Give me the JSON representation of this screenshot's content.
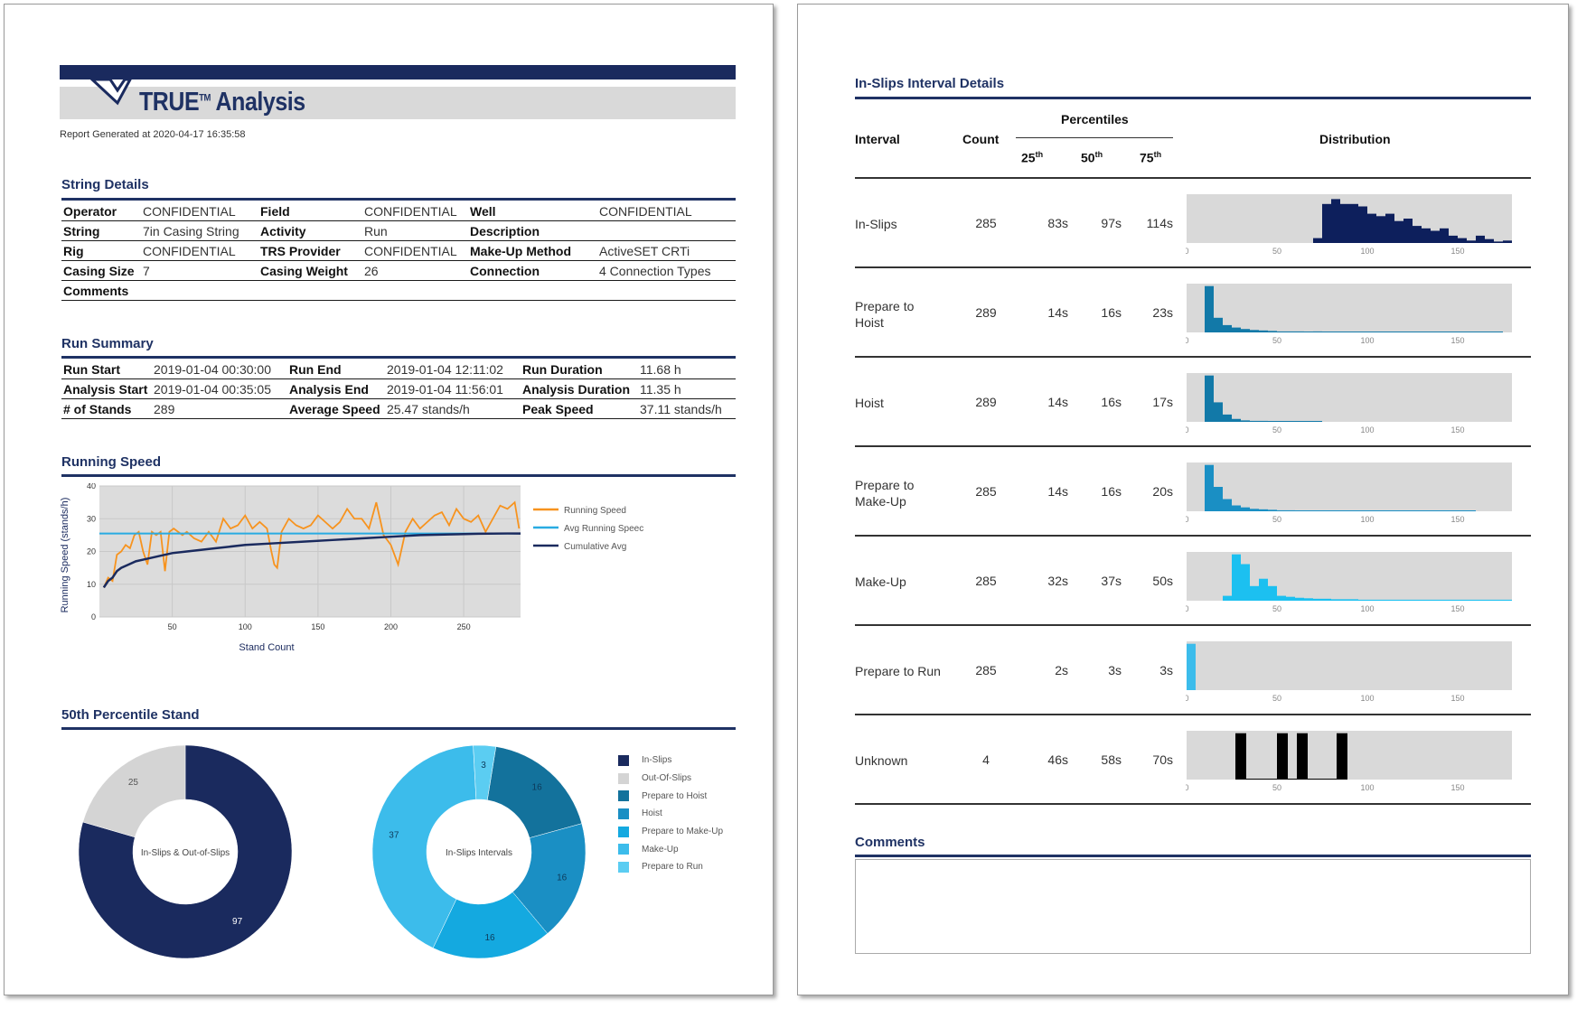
{
  "header": {
    "title": "TRUE",
    "title_mark": "TM",
    "title_suffix": "Analysis",
    "report_generated": "Report Generated at 2020-04-17 16:35:58"
  },
  "string_details": {
    "title": "String Details",
    "rows": [
      [
        {
          "k": "Operator",
          "v": "CONFIDENTIAL"
        },
        {
          "k": "Field",
          "v": "CONFIDENTIAL"
        },
        {
          "k": "Well",
          "v": "CONFIDENTIAL"
        }
      ],
      [
        {
          "k": "String",
          "v": "7in Casing String"
        },
        {
          "k": "Activity",
          "v": "Run"
        },
        {
          "k": "Description",
          "v": ""
        }
      ],
      [
        {
          "k": "Rig",
          "v": "CONFIDENTIAL"
        },
        {
          "k": "TRS Provider",
          "v": "CONFIDENTIAL"
        },
        {
          "k": "Make-Up Method",
          "v": "ActiveSET CRTi"
        }
      ],
      [
        {
          "k": "Casing Size",
          "v": "7"
        },
        {
          "k": "Casing Weight",
          "v": "26"
        },
        {
          "k": "Connection",
          "v": "4 Connection Types"
        }
      ],
      [
        {
          "k": "Comments",
          "v": ""
        }
      ]
    ]
  },
  "run_summary": {
    "title": "Run Summary",
    "rows": [
      [
        {
          "k": "Run Start",
          "v": "2019-01-04 00:30:00"
        },
        {
          "k": "Run End",
          "v": "2019-01-04 12:11:02"
        },
        {
          "k": "Run Duration",
          "v": "11.68 h"
        }
      ],
      [
        {
          "k": "Analysis Start",
          "v": "2019-01-04 00:35:05"
        },
        {
          "k": "Analysis End",
          "v": "2019-01-04 11:56:01"
        },
        {
          "k": "Analysis Duration",
          "v": "11.35 h"
        }
      ],
      [
        {
          "k": "# of Stands",
          "v": "289"
        },
        {
          "k": "Average Speed",
          "v": "25.47 stands/h"
        },
        {
          "k": "Peak Speed",
          "v": "37.11 stands/h"
        }
      ]
    ]
  },
  "running_speed_section": {
    "title": "Running Speed"
  },
  "percentile_section": {
    "title": "50th Percentile Stand"
  },
  "colors": {
    "navy": "#1a2a5e",
    "orange": "#f7931e",
    "cyan": "#29abe2",
    "grey": "#d9d9d9",
    "hist_navy": "#0d1f5c",
    "hist_teal": "#1279a8",
    "hist_sky": "#1cc0f0"
  },
  "chart_data": [
    {
      "type": "line",
      "title": "",
      "xlabel": "Stand Count",
      "ylabel": "Running Speed (stands/h)",
      "xlim": [
        0,
        289
      ],
      "ylim": [
        0,
        40
      ],
      "xticks": [
        "50",
        "100",
        "150",
        "200",
        "250"
      ],
      "yticks": [
        "0",
        "10",
        "20",
        "30",
        "40"
      ],
      "grid": true,
      "legend": "right",
      "series": [
        {
          "name": "Running Speed",
          "color": "#f7931e",
          "x": [
            3,
            6,
            9,
            12,
            15,
            18,
            21,
            24,
            27,
            30,
            33,
            36,
            39,
            42,
            45,
            48,
            51,
            54,
            57,
            60,
            65,
            70,
            75,
            80,
            85,
            90,
            95,
            100,
            105,
            110,
            115,
            118,
            120,
            122,
            125,
            130,
            135,
            140,
            145,
            150,
            155,
            160,
            165,
            170,
            175,
            180,
            185,
            190,
            195,
            200,
            205,
            210,
            215,
            220,
            225,
            230,
            235,
            240,
            245,
            250,
            255,
            260,
            265,
            270,
            275,
            280,
            285,
            288
          ],
          "y": [
            9,
            12,
            11,
            19,
            20,
            22,
            21,
            25,
            26,
            20,
            16,
            26,
            25,
            26,
            14,
            26,
            27,
            26,
            25,
            26,
            24,
            23,
            26,
            23,
            30,
            27,
            28,
            31,
            27,
            29,
            27,
            20,
            16,
            15,
            26,
            30,
            28,
            27,
            28,
            31,
            29,
            27,
            29,
            33,
            30,
            30,
            27,
            35,
            25,
            22,
            16,
            26,
            30,
            27,
            29,
            31,
            32,
            28,
            33,
            30,
            29,
            31,
            26,
            30,
            34,
            33,
            35,
            27
          ]
        },
        {
          "name": "Avg Running Speec",
          "color": "#29abe2",
          "x": [
            0,
            289
          ],
          "y": [
            25.5,
            25.5
          ]
        },
        {
          "name": "Cumulative Avg",
          "color": "#1a2a5e",
          "x": [
            3,
            6,
            9,
            12,
            15,
            20,
            25,
            30,
            40,
            50,
            60,
            80,
            100,
            120,
            140,
            160,
            180,
            200,
            220,
            240,
            260,
            280,
            289
          ],
          "y": [
            9,
            11,
            12,
            14,
            15,
            16,
            17,
            17.5,
            18.5,
            19.5,
            20,
            21,
            22,
            22.5,
            23,
            23.5,
            24,
            24.5,
            25,
            25.2,
            25.4,
            25.5,
            25.5
          ]
        }
      ]
    },
    {
      "type": "pie",
      "title": "In-Slips & Out-of-Slips",
      "slices": [
        {
          "label": "In-Slips",
          "value": 97,
          "color": "#1a2a5e"
        },
        {
          "label": "Out-Of-Slips",
          "value": 25,
          "color": "#d4d4d4"
        }
      ]
    },
    {
      "type": "pie",
      "title": "In-Slips Intervals",
      "slices": [
        {
          "label": "Prepare to Hoist",
          "value": 16,
          "color": "#13729c"
        },
        {
          "label": "Hoist",
          "value": 16,
          "color": "#1a8fc4"
        },
        {
          "label": "Prepare to Make-Up",
          "value": 16,
          "color": "#14a9e0"
        },
        {
          "label": "Make-Up",
          "value": 37,
          "color": "#3cbceb"
        },
        {
          "label": "Prepare to Run",
          "value": 3,
          "color": "#5bcdf2"
        }
      ]
    },
    {
      "type": "bar",
      "title": "Distribution",
      "xlim": [
        0,
        180
      ],
      "xticks": [
        "0",
        "50",
        "100",
        "150"
      ],
      "histograms": [
        {
          "interval": "In-Slips",
          "color": "#0d1f5c",
          "bin_start": 70,
          "bin_width": 5,
          "values": [
            0.1,
            0.8,
            0.9,
            0.8,
            0.8,
            0.75,
            0.6,
            0.55,
            0.6,
            0.45,
            0.5,
            0.35,
            0.3,
            0.25,
            0.3,
            0.15,
            0.1,
            0.05,
            0.15,
            0.08,
            0.03,
            0.05
          ]
        },
        {
          "interval": "Prepare to Hoist",
          "color": "#1279a8",
          "bin_start": 10,
          "bin_width": 5,
          "values": [
            0.95,
            0.3,
            0.15,
            0.1,
            0.07,
            0.05,
            0.04,
            0.03,
            0.02,
            0.02,
            0.02,
            0.01,
            0.02,
            0.01,
            0.01,
            0.01,
            0.01,
            0.01,
            0.01,
            0.01,
            0.01,
            0.01,
            0.01,
            0.01,
            0.01,
            0.01,
            0.01,
            0.01,
            0.01,
            0.01,
            0.01,
            0.01,
            0.01
          ]
        },
        {
          "interval": "Hoist",
          "color": "#1279a8",
          "bin_start": 10,
          "bin_width": 5,
          "values": [
            0.95,
            0.4,
            0.15,
            0.06,
            0.03,
            0.02,
            0.02,
            0.01,
            0.01,
            0.01,
            0.01,
            0.01,
            0.01
          ]
        },
        {
          "interval": "Prepare to Make-Up",
          "color": "#1a8fc4",
          "bin_start": 10,
          "bin_width": 5,
          "values": [
            0.95,
            0.5,
            0.25,
            0.12,
            0.08,
            0.05,
            0.04,
            0.03,
            0.02,
            0.02,
            0.01,
            0.01,
            0.01,
            0.01,
            0.01,
            0.01,
            0.01,
            0.01,
            0.01,
            0.01,
            0.01,
            0.01,
            0.01,
            0.01,
            0.01,
            0.01,
            0.01,
            0.01,
            0.01,
            0.01
          ]
        },
        {
          "interval": "Make-Up",
          "color": "#1cc0f0",
          "bin_start": 20,
          "bin_width": 5,
          "values": [
            0.1,
            0.95,
            0.75,
            0.3,
            0.45,
            0.3,
            0.1,
            0.08,
            0.06,
            0.05,
            0.04,
            0.04,
            0.03,
            0.03,
            0.03,
            0.02,
            0.02,
            0.02,
            0.02,
            0.02,
            0.02,
            0.02,
            0.02,
            0.02,
            0.02,
            0.02,
            0.02,
            0.02,
            0.02,
            0.02,
            0.02,
            0.02
          ]
        },
        {
          "interval": "Prepare to Run",
          "color": "#3cbceb",
          "bin_start": 0,
          "bin_width": 5,
          "values": [
            0.95
          ]
        },
        {
          "interval": "Unknown",
          "color": "#000000",
          "bin_start": 27,
          "bin_width": 5,
          "values": [
            0.95,
            0,
            0,
            0.95,
            0.95,
            0,
            0,
            0,
            0,
            0,
            0.95
          ],
          "custom_x": [
            27,
            50,
            61,
            83
          ]
        }
      ]
    }
  ],
  "legend_items": [
    {
      "label": "In-Slips",
      "color": "#1a2a5e"
    },
    {
      "label": "Out-Of-Slips",
      "color": "#d4d4d4"
    },
    {
      "label": "Prepare to Hoist",
      "color": "#13729c"
    },
    {
      "label": "Hoist",
      "color": "#1a8fc4"
    },
    {
      "label": "Prepare to Make-Up",
      "color": "#14a9e0"
    },
    {
      "label": "Make-Up",
      "color": "#3cbceb"
    },
    {
      "label": "Prepare to Run",
      "color": "#5bcdf2"
    }
  ],
  "intervals_section": {
    "title": "In-Slips Interval Details",
    "headers": {
      "interval": "Interval",
      "count": "Count",
      "percentiles": "Percentiles",
      "p25": "25",
      "p50": "50",
      "p75": "75",
      "sup": "th",
      "distribution": "Distribution"
    },
    "rows": [
      {
        "name_line1": "In-Slips",
        "name_line2": "",
        "count": "285",
        "p25": "83s",
        "p50": "97s",
        "p75": "114s"
      },
      {
        "name_line1": "Prepare to",
        "name_line2": "Hoist",
        "count": "289",
        "p25": "14s",
        "p50": "16s",
        "p75": "23s"
      },
      {
        "name_line1": "Hoist",
        "name_line2": "",
        "count": "289",
        "p25": "14s",
        "p50": "16s",
        "p75": "17s"
      },
      {
        "name_line1": "Prepare to",
        "name_line2": "Make-Up",
        "count": "285",
        "p25": "14s",
        "p50": "16s",
        "p75": "20s"
      },
      {
        "name_line1": "Make-Up",
        "name_line2": "",
        "count": "285",
        "p25": "32s",
        "p50": "37s",
        "p75": "50s"
      },
      {
        "name_line1": "Prepare to Run",
        "name_line2": "",
        "count": "285",
        "p25": "2s",
        "p50": "3s",
        "p75": "3s"
      },
      {
        "name_line1": "Unknown",
        "name_line2": "",
        "count": "4",
        "p25": "46s",
        "p50": "58s",
        "p75": "70s"
      }
    ]
  },
  "comments_section": {
    "title": "Comments",
    "value": ""
  }
}
